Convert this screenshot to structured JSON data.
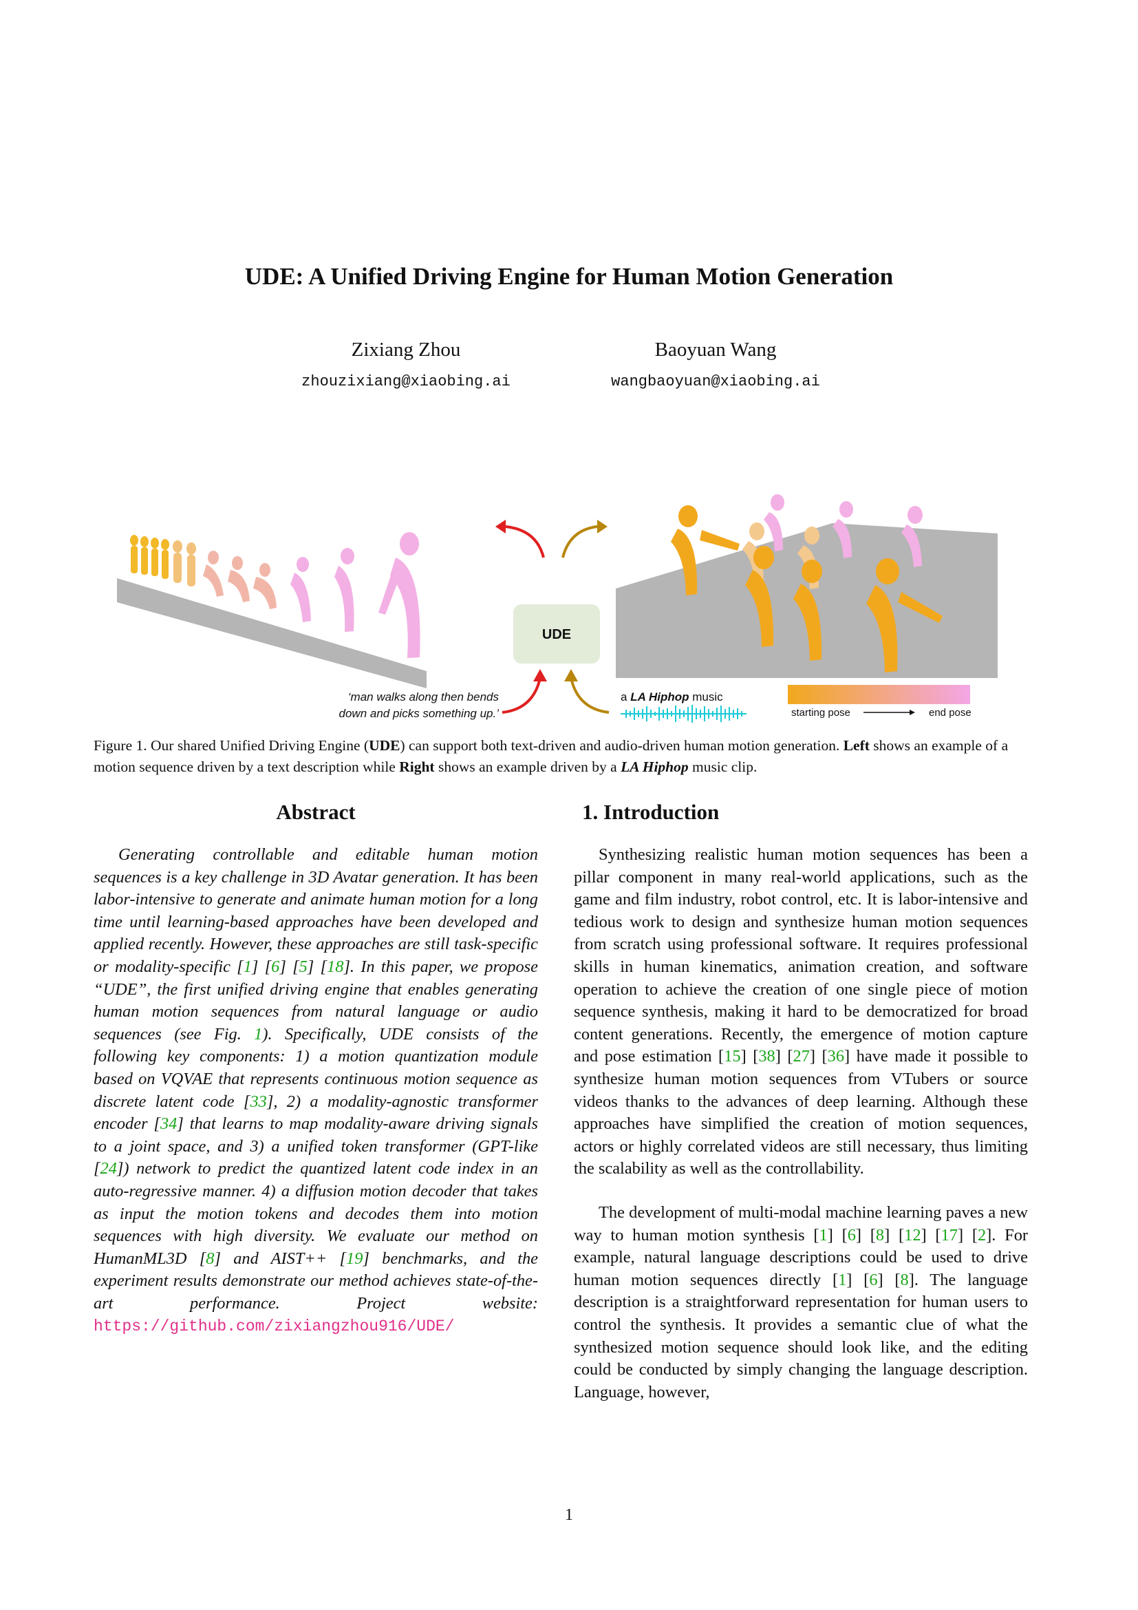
{
  "title": "UDE: A Unified Driving Engine for Human Motion Generation",
  "authors": [
    {
      "name": "Zixiang Zhou",
      "email": "zhouzixiang@xiaobing.ai"
    },
    {
      "name": "Baoyuan Wang",
      "email": "wangbaoyuan@xiaobing.ai"
    }
  ],
  "figure": {
    "center_label": "UDE",
    "text_prompt_line1": "‘man walks along then bends",
    "text_prompt_line2": "down and picks something up.’",
    "music_prefix": "a ",
    "music_name": "LA Hiphop",
    "music_suffix": " music",
    "gradient_start": "starting pose",
    "gradient_end": "end pose",
    "colors": {
      "orange": "#f2a81d",
      "pink": "#f3a6e6",
      "ude_box": "#e2ecd9",
      "red_arrow": "#e02020",
      "gold_arrow": "#b8860b",
      "floor": "#b5b5b5",
      "wave": "#19c9d6"
    }
  },
  "caption": {
    "p1": "Figure 1. Our shared Unified Driving Engine (",
    "b1": "UDE",
    "p2": ") can support both text-driven and audio-driven human motion generation. ",
    "b2": "Left",
    "p3": " shows an example of a motion sequence driven by a text description while ",
    "b3": "Right",
    "p4": " shows an example driven by a ",
    "bi": "LA Hiphop",
    "p5": " music clip."
  },
  "abstract": {
    "heading": "Abstract",
    "t1": "Generating controllable and editable human motion sequences is a key challenge in 3D Avatar generation. It has been labor-intensive to generate and animate human motion for a long time until learning-based approaches have been developed and applied recently. However, these approaches are still task-specific or modality-specific [",
    "c1": "1",
    "t2": "] [",
    "c2": "6",
    "t3": "] [",
    "c3": "5",
    "t4": "] [",
    "c4": "18",
    "t5": "]. In this paper, we propose “UDE”, the first unified driving engine that enables generating human motion sequences from natural language or audio sequences (see Fig. ",
    "c5": "1",
    "t6": "). Specifically, UDE consists of the following key components: 1) a motion quantization module based on VQVAE that represents continuous motion sequence as discrete latent code [",
    "c6": "33",
    "t7": "], 2) a modality-agnostic transformer encoder [",
    "c7": "34",
    "t8": "] that learns to map modality-aware driving signals to a joint space, and 3) a unified token transformer (GPT-like [",
    "c8": "24",
    "t9": "]) network to predict the quantized latent code index in an auto-regressive manner. 4) a diffusion motion decoder that takes as input the motion tokens and decodes them into motion sequences with high diversity. We evaluate our method on HumanML3D [",
    "c9": "8",
    "t10": "] and AIST++ [",
    "c10": "19",
    "t11": "] benchmarks, and the experiment results demonstrate our method achieves state-of-the-art performance. Project website: ",
    "url": "https://github.com/zixiangzhou916/UDE/"
  },
  "intro": {
    "heading": "1. Introduction",
    "p1_a": "Synthesizing realistic human motion sequences has been a pillar component in many real-world applications, such as the game and film industry, robot control, etc. It is labor-intensive and tedious work to design and synthesize human motion sequences from scratch using professional software. It requires professional skills in human kinematics, animation creation, and software operation to achieve the creation of one single piece of motion sequence synthesis, making it hard to be democratized for broad content generations. Recently, the emergence of motion capture and pose estimation [",
    "p1_c1": "15",
    "p1_b": "] [",
    "p1_c2": "38",
    "p1_c": "] [",
    "p1_c3": "27",
    "p1_d": "] [",
    "p1_c4": "36",
    "p1_e": "] have made it possible to synthesize human motion sequences from VTubers or source videos thanks to the advances of deep learning. Although these approaches have simplified the creation of motion sequences, actors or highly correlated videos are still necessary, thus limiting the scalability as well as the controllability.",
    "p2_a": "The development of multi-modal machine learning paves a new way to human motion synthesis [",
    "p2_c1": "1",
    "p2_b": "] [",
    "p2_c2": "6",
    "p2_c": "] [",
    "p2_c3": "8",
    "p2_d": "] [",
    "p2_c4": "12",
    "p2_e": "] [",
    "p2_c5": "17",
    "p2_f": "] [",
    "p2_c6": "2",
    "p2_g": "]. For example, natural language descriptions could be used to drive human motion sequences directly [",
    "p2_c7": "1",
    "p2_h": "] [",
    "p2_c8": "6",
    "p2_i": "] [",
    "p2_c9": "8",
    "p2_j": "]. The language description is a straightforward representation for human users to control the synthesis. It provides a semantic clue of what the synthesized motion sequence should look like, and the editing could be conducted by simply changing the language description. Language, however,"
  },
  "page_number": "1"
}
